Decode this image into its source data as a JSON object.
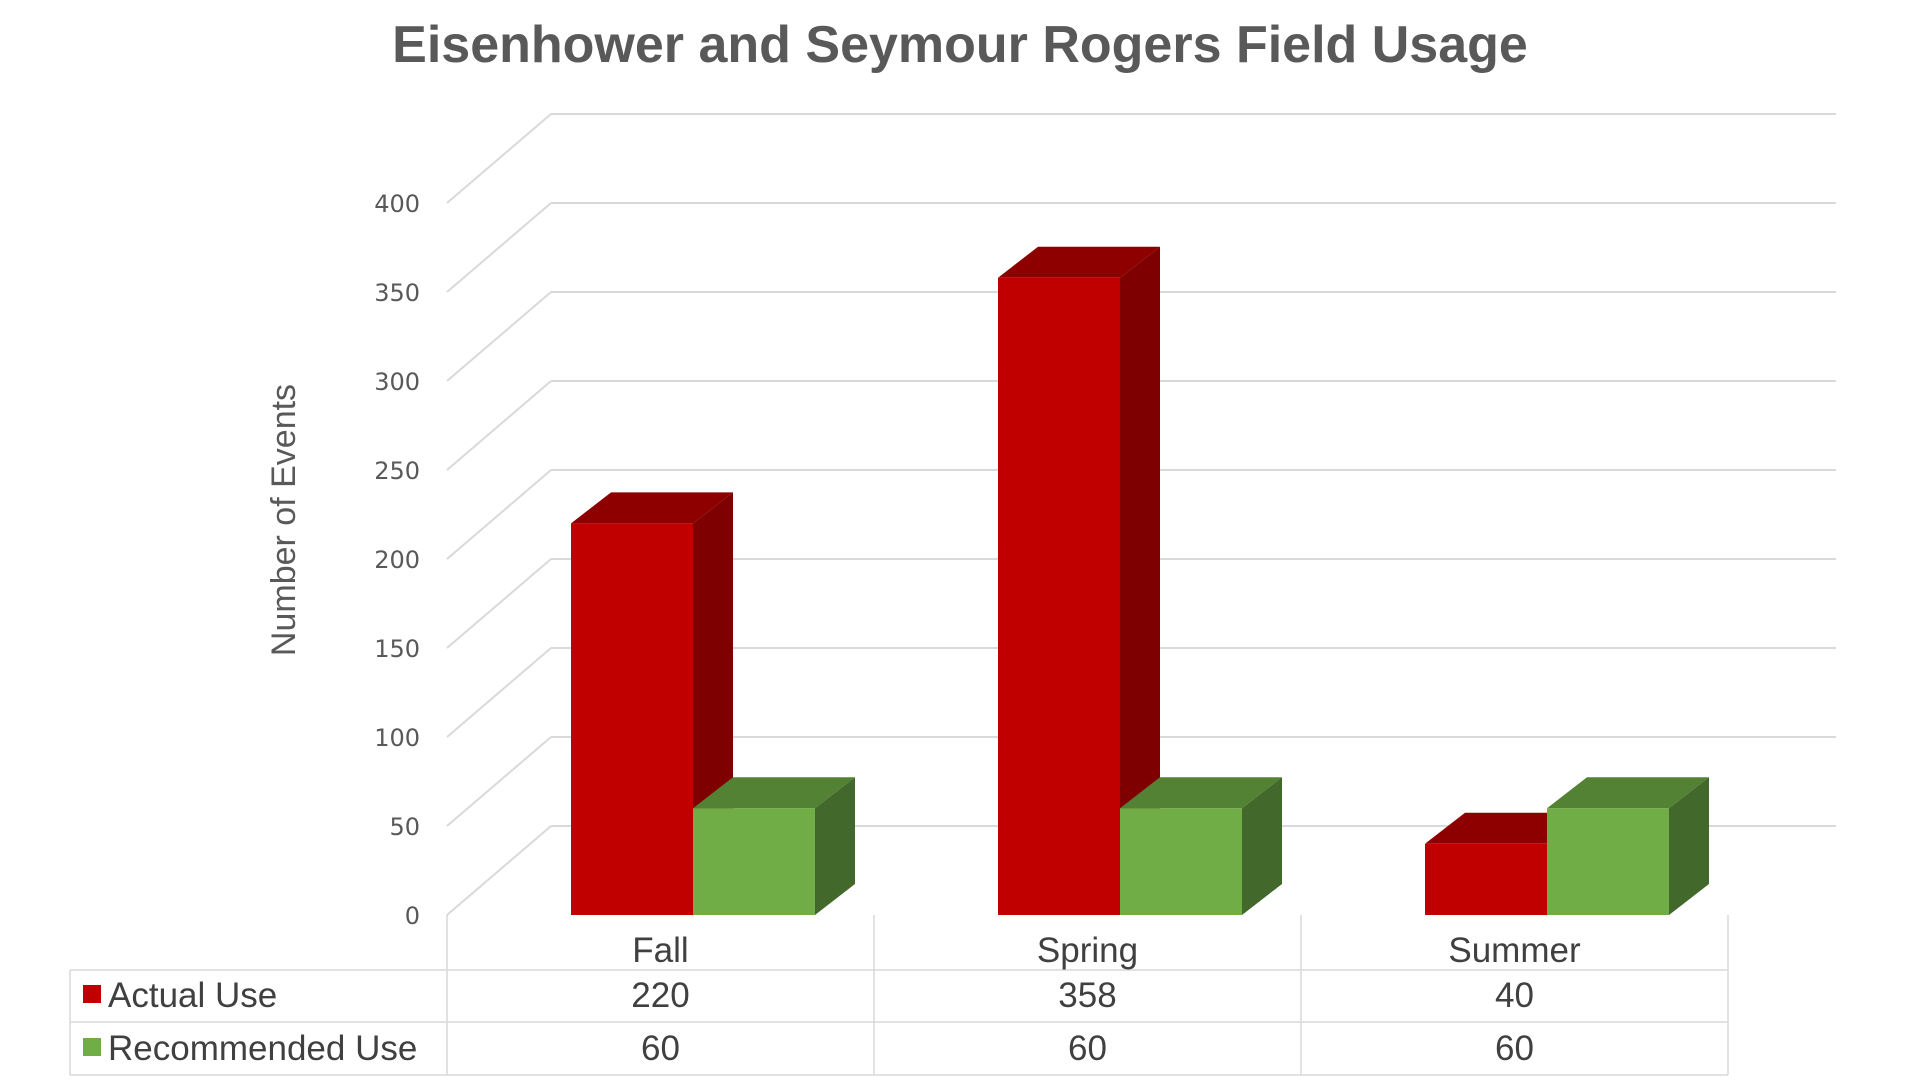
{
  "chart_data": {
    "type": "bar",
    "title": "Eisenhower and Seymour Rogers Field Usage",
    "ylabel": "Number of Events",
    "xlabel": "",
    "ylim": [
      0,
      400
    ],
    "yticks": [
      0,
      50,
      100,
      150,
      200,
      250,
      300,
      350,
      400
    ],
    "categories": [
      "Fall",
      "Spring",
      "Summer"
    ],
    "series": [
      {
        "name": "Actual Use",
        "values": [
          220,
          358,
          40
        ],
        "color": "#C00000"
      },
      {
        "name": "Recommended Use",
        "values": [
          60,
          60,
          60
        ],
        "color": "#70AD47"
      }
    ],
    "grid": true,
    "legend": "data-table"
  },
  "colors": {
    "actual_front": "#C00000",
    "actual_side": "#7F0000",
    "actual_top": "#8E0000",
    "recommended_front": "#70AD47",
    "recommended_side": "#43682B",
    "recommended_top": "#548235",
    "text": "#595959",
    "grid": "#D9D9D9"
  }
}
